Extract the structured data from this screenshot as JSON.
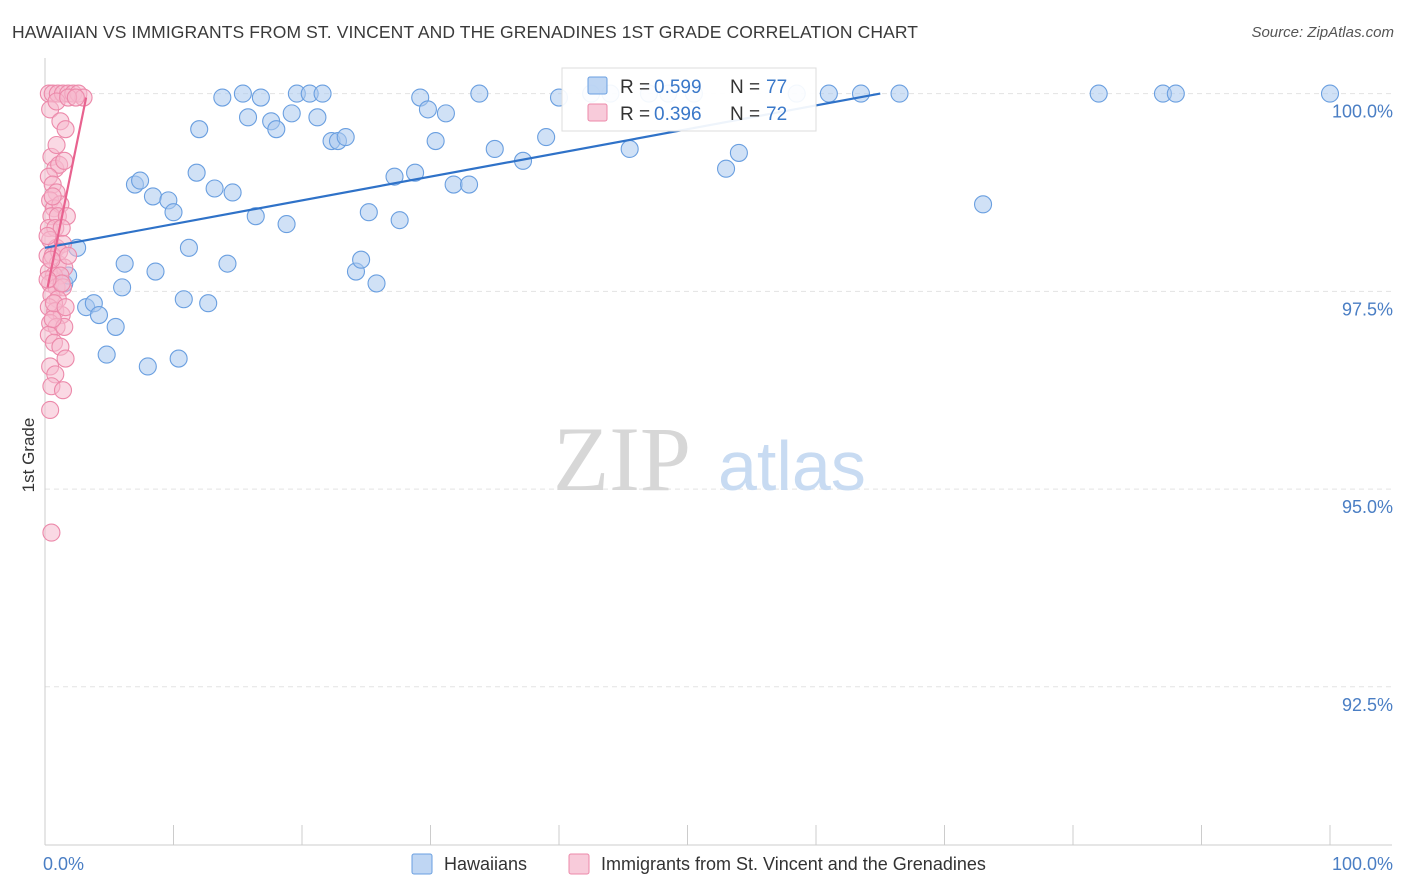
{
  "header": {
    "title": "HAWAIIAN VS IMMIGRANTS FROM ST. VINCENT AND THE GRENADINES 1ST GRADE CORRELATION CHART",
    "source": "Source: ZipAtlas.com"
  },
  "watermark": {
    "zip": "ZIP",
    "atlas": "atlas"
  },
  "colors": {
    "blue_fill": "#a9c8ef",
    "blue_stroke": "#6a9fe0",
    "blue_line": "#2f72c8",
    "pink_fill": "#f6b9cd",
    "pink_stroke": "#ec89aa",
    "pink_line": "#e8628f",
    "grid": "#e3e3e3",
    "tick_text": "#4a7ec4"
  },
  "chart_data": {
    "type": "scatter",
    "title": "HAWAIIAN VS IMMIGRANTS FROM ST. VINCENT AND THE GRENADINES 1ST GRADE CORRELATION CHART",
    "xlabel": "",
    "ylabel": "1st Grade",
    "xlim": [
      0,
      100
    ],
    "ylim": [
      90.5,
      100.45
    ],
    "x_tick_labels": [
      "0.0%",
      "100.0%"
    ],
    "y_ticks": [
      {
        "value": 100.0,
        "label": "100.0%"
      },
      {
        "value": 97.5,
        "label": "97.5%"
      },
      {
        "value": 95.0,
        "label": "95.0%"
      },
      {
        "value": 92.5,
        "label": "92.5%"
      }
    ],
    "legend_top": [
      {
        "series": "Hawaiians",
        "r_label": "R = ",
        "r_value": "0.599",
        "n_label": "N = ",
        "n_value": "77"
      },
      {
        "series": "Immigrants from St. Vincent and the Grenadines",
        "r_label": "R = ",
        "r_value": "0.396",
        "n_label": "N = ",
        "n_value": "72"
      }
    ],
    "series": [
      {
        "name": "Hawaiians",
        "color": "blue",
        "trend": {
          "x": [
            0,
            65
          ],
          "y": [
            98.05,
            100.0
          ]
        },
        "points": [
          [
            2.5,
            98.05
          ],
          [
            1.5,
            97.6
          ],
          [
            1.8,
            97.7
          ],
          [
            3.2,
            97.3
          ],
          [
            3.8,
            97.35
          ],
          [
            4.2,
            97.2
          ],
          [
            4.8,
            96.7
          ],
          [
            5.5,
            97.05
          ],
          [
            6.0,
            97.55
          ],
          [
            6.2,
            97.85
          ],
          [
            7.0,
            98.85
          ],
          [
            7.4,
            98.9
          ],
          [
            8.0,
            96.55
          ],
          [
            8.4,
            98.7
          ],
          [
            8.6,
            97.75
          ],
          [
            9.6,
            98.65
          ],
          [
            10.0,
            98.5
          ],
          [
            10.4,
            96.65
          ],
          [
            10.8,
            97.4
          ],
          [
            11.2,
            98.05
          ],
          [
            11.8,
            99.0
          ],
          [
            12.0,
            99.55
          ],
          [
            12.7,
            97.35
          ],
          [
            13.2,
            98.8
          ],
          [
            13.8,
            99.95
          ],
          [
            14.2,
            97.85
          ],
          [
            14.6,
            98.75
          ],
          [
            15.4,
            100.0
          ],
          [
            15.8,
            99.7
          ],
          [
            16.4,
            98.45
          ],
          [
            16.8,
            99.95
          ],
          [
            17.6,
            99.65
          ],
          [
            18.0,
            99.55
          ],
          [
            18.8,
            98.35
          ],
          [
            19.2,
            99.75
          ],
          [
            19.6,
            100.0
          ],
          [
            20.6,
            100.0
          ],
          [
            21.6,
            100.0
          ],
          [
            21.2,
            99.7
          ],
          [
            22.3,
            99.4
          ],
          [
            22.8,
            99.4
          ],
          [
            23.4,
            99.45
          ],
          [
            24.2,
            97.75
          ],
          [
            24.6,
            97.9
          ],
          [
            25.2,
            98.5
          ],
          [
            25.8,
            97.6
          ],
          [
            27.2,
            98.95
          ],
          [
            27.6,
            98.4
          ],
          [
            28.8,
            99.0
          ],
          [
            29.2,
            99.95
          ],
          [
            29.8,
            99.8
          ],
          [
            30.4,
            99.4
          ],
          [
            31.2,
            99.75
          ],
          [
            31.8,
            98.85
          ],
          [
            33.0,
            98.85
          ],
          [
            33.8,
            100.0
          ],
          [
            35.0,
            99.3
          ],
          [
            37.2,
            99.15
          ],
          [
            39.0,
            99.45
          ],
          [
            40.0,
            99.95
          ],
          [
            42.5,
            100.0
          ],
          [
            44.0,
            100.0
          ],
          [
            45.5,
            99.3
          ],
          [
            47.0,
            100.0
          ],
          [
            48.5,
            100.0
          ],
          [
            50.5,
            100.0
          ],
          [
            53.0,
            99.05
          ],
          [
            54.0,
            99.25
          ],
          [
            58.5,
            100.0
          ],
          [
            61.0,
            100.0
          ],
          [
            63.5,
            100.0
          ],
          [
            66.5,
            100.0
          ],
          [
            73.0,
            98.6
          ],
          [
            87.0,
            100.0
          ],
          [
            88.0,
            100.0
          ],
          [
            100.0,
            100.0
          ],
          [
            82.0,
            100.0
          ]
        ]
      },
      {
        "name": "Immigrants from St. Vincent and the Grenadines",
        "color": "pink",
        "trend": {
          "x": [
            0.2,
            3.2
          ],
          "y": [
            97.55,
            99.95
          ]
        },
        "points": [
          [
            0.3,
            100.0
          ],
          [
            0.6,
            100.0
          ],
          [
            1.0,
            100.0
          ],
          [
            1.4,
            100.0
          ],
          [
            1.8,
            100.0
          ],
          [
            2.2,
            100.0
          ],
          [
            2.6,
            100.0
          ],
          [
            3.0,
            99.95
          ],
          [
            0.4,
            99.8
          ],
          [
            0.9,
            99.9
          ],
          [
            1.2,
            99.65
          ],
          [
            1.6,
            99.55
          ],
          [
            0.5,
            99.2
          ],
          [
            0.8,
            99.05
          ],
          [
            1.1,
            99.1
          ],
          [
            1.5,
            99.15
          ],
          [
            0.3,
            98.95
          ],
          [
            0.6,
            98.85
          ],
          [
            0.9,
            98.75
          ],
          [
            0.4,
            98.65
          ],
          [
            0.7,
            98.55
          ],
          [
            1.2,
            98.6
          ],
          [
            0.5,
            98.45
          ],
          [
            1.0,
            98.45
          ],
          [
            1.7,
            98.45
          ],
          [
            0.3,
            98.3
          ],
          [
            0.8,
            98.3
          ],
          [
            1.3,
            98.3
          ],
          [
            0.4,
            98.15
          ],
          [
            0.9,
            98.05
          ],
          [
            1.4,
            98.1
          ],
          [
            0.2,
            97.95
          ],
          [
            0.6,
            97.95
          ],
          [
            1.0,
            97.85
          ],
          [
            1.5,
            97.8
          ],
          [
            0.3,
            97.75
          ],
          [
            0.7,
            97.7
          ],
          [
            1.2,
            97.7
          ],
          [
            0.4,
            97.6
          ],
          [
            0.9,
            97.55
          ],
          [
            1.4,
            97.55
          ],
          [
            0.5,
            97.45
          ],
          [
            1.0,
            97.4
          ],
          [
            0.3,
            97.3
          ],
          [
            0.8,
            97.25
          ],
          [
            1.3,
            97.2
          ],
          [
            0.4,
            97.1
          ],
          [
            0.9,
            97.05
          ],
          [
            1.5,
            97.05
          ],
          [
            0.3,
            96.95
          ],
          [
            0.7,
            96.85
          ],
          [
            1.2,
            96.8
          ],
          [
            1.6,
            96.65
          ],
          [
            0.4,
            96.55
          ],
          [
            0.8,
            96.45
          ],
          [
            0.5,
            96.3
          ],
          [
            1.4,
            96.25
          ],
          [
            0.4,
            96.0
          ],
          [
            0.5,
            94.45
          ],
          [
            1.8,
            99.95
          ],
          [
            2.4,
            99.95
          ],
          [
            0.6,
            97.15
          ],
          [
            0.2,
            98.2
          ],
          [
            1.1,
            98.0
          ],
          [
            0.7,
            97.35
          ],
          [
            0.5,
            97.9
          ],
          [
            1.3,
            97.6
          ],
          [
            0.9,
            99.35
          ],
          [
            0.6,
            98.7
          ],
          [
            1.8,
            97.95
          ],
          [
            0.2,
            97.65
          ],
          [
            1.6,
            97.3
          ]
        ]
      }
    ]
  }
}
